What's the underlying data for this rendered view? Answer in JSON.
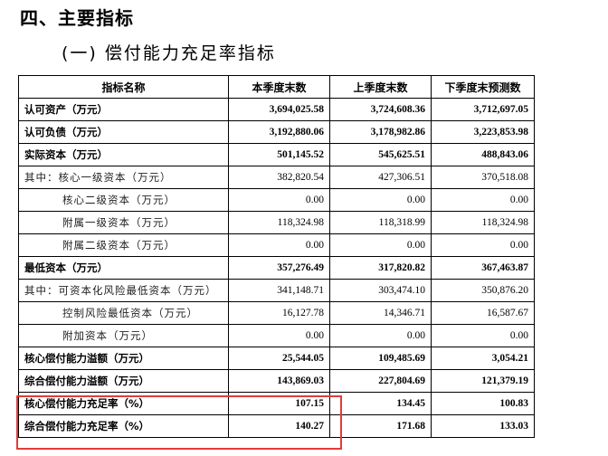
{
  "section_title": "四、主要指标",
  "subsection_title": "(一) 偿付能力充足率指标",
  "table": {
    "headers": [
      "指标名称",
      "本季度末数",
      "上季度末数",
      "下季度末预测数"
    ],
    "rows": [
      {
        "label": "认可资产（万元）",
        "c1": "3,694,025.58",
        "c2": "3,724,608.36",
        "c3": "3,712,697.05"
      },
      {
        "label": "认可负债（万元）",
        "c1": "3,192,880.06",
        "c2": "3,178,982.86",
        "c3": "3,223,853.98"
      },
      {
        "label": "实际资本（万元）",
        "c1": "501,145.52",
        "c2": "545,625.51",
        "c3": "488,843.06"
      },
      {
        "label": "其中：核心一级资本（万元）",
        "c1": "382,820.54",
        "c2": "427,306.51",
        "c3": "370,518.08"
      },
      {
        "label": "核心二级资本（万元）",
        "c1": "0.00",
        "c2": "0.00",
        "c3": "0.00"
      },
      {
        "label": "附属一级资本（万元）",
        "c1": "118,324.98",
        "c2": "118,318.99",
        "c3": "118,324.98"
      },
      {
        "label": "附属二级资本（万元）",
        "c1": "0.00",
        "c2": "0.00",
        "c3": "0.00"
      },
      {
        "label": "最低资本（万元）",
        "c1": "357,276.49",
        "c2": "317,820.82",
        "c3": "367,463.87"
      },
      {
        "label": "其中：可资本化风险最低资本（万元）",
        "c1": "341,148.71",
        "c2": "303,474.10",
        "c3": "350,876.20"
      },
      {
        "label": "控制风险最低资本（万元）",
        "c1": "16,127.78",
        "c2": "14,346.71",
        "c3": "16,587.67"
      },
      {
        "label": "附加资本（万元）",
        "c1": "0.00",
        "c2": "0.00",
        "c3": "0.00"
      },
      {
        "label": "核心偿付能力溢额（万元）",
        "c1": "25,544.05",
        "c2": "109,485.69",
        "c3": "3,054.21"
      },
      {
        "label": "综合偿付能力溢额（万元）",
        "c1": "143,869.03",
        "c2": "227,804.69",
        "c3": "121,379.19"
      },
      {
        "label": "核心偿付能力充足率（%）",
        "c1": "107.15",
        "c2": "134.45",
        "c3": "100.83"
      },
      {
        "label": "综合偿付能力充足率（%）",
        "c1": "140.27",
        "c2": "171.68",
        "c3": "133.03"
      }
    ]
  },
  "highlight_color": "#e23b3b"
}
